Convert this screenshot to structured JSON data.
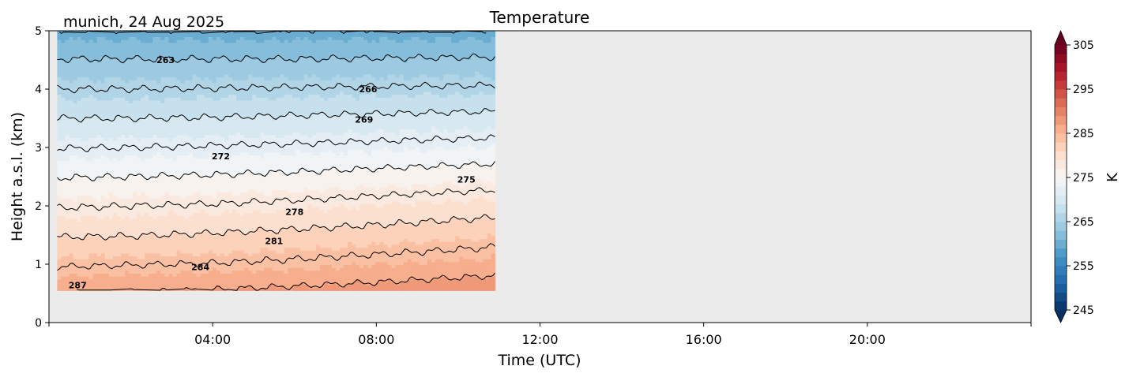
{
  "chart_data": {
    "type": "heatmap",
    "title": "Temperature",
    "subtitle": "munich, 24 Aug 2025",
    "xlabel": "Time (UTC)",
    "ylabel": "Height a.s.l. (km)",
    "xlim_hours": [
      0,
      24
    ],
    "ylim": [
      0,
      5
    ],
    "x_ticks": [
      {
        "h": 0,
        "label": ""
      },
      {
        "h": 4,
        "label": "04:00"
      },
      {
        "h": 8,
        "label": "08:00"
      },
      {
        "h": 12,
        "label": "12:00"
      },
      {
        "h": 16,
        "label": "16:00"
      },
      {
        "h": 20,
        "label": "20:00"
      },
      {
        "h": 24,
        "label": ""
      }
    ],
    "y_ticks": [
      0,
      1,
      2,
      3,
      4,
      5
    ],
    "data_time_hours": [
      0.2,
      2,
      4,
      6,
      8,
      10.9
    ],
    "data_height_km": [
      0.55,
      1.0,
      1.5,
      2.0,
      2.5,
      3.0,
      3.5,
      4.0,
      4.5,
      5.0
    ],
    "temperature_K": [
      [
        286.7,
        286.8,
        287.1,
        287.5,
        287.9,
        288.7
      ],
      [
        283.7,
        283.9,
        284.1,
        284.5,
        285.0,
        285.7
      ],
      [
        280.8,
        280.9,
        281.2,
        281.6,
        282.0,
        282.8
      ],
      [
        277.8,
        278.0,
        278.2,
        278.6,
        279.1,
        279.8
      ],
      [
        274.9,
        275.0,
        275.2,
        275.5,
        275.9,
        276.5
      ],
      [
        271.9,
        272.0,
        272.2,
        272.4,
        272.7,
        273.1
      ],
      [
        269.0,
        269.0,
        269.1,
        269.3,
        269.5,
        269.8
      ],
      [
        266.0,
        266.0,
        266.1,
        266.2,
        266.3,
        266.4
      ],
      [
        263.1,
        263.1,
        263.1,
        263.1,
        263.2,
        263.3
      ],
      [
        260.1,
        260.1,
        260.1,
        260.1,
        260.1,
        260.1
      ]
    ],
    "contour_levels": [
      260,
      263,
      266,
      269,
      272,
      275,
      278,
      281,
      284,
      287
    ],
    "contour_labels": [
      {
        "text": "263",
        "h": 2.85,
        "z": 4.5
      },
      {
        "text": "266",
        "h": 7.8,
        "z": 4.0
      },
      {
        "text": "269",
        "h": 7.7,
        "z": 3.48
      },
      {
        "text": "272",
        "h": 4.2,
        "z": 2.85
      },
      {
        "text": "275",
        "h": 10.2,
        "z": 2.45
      },
      {
        "text": "278",
        "h": 6.0,
        "z": 1.9
      },
      {
        "text": "281",
        "h": 5.5,
        "z": 1.4
      },
      {
        "text": "284",
        "h": 3.7,
        "z": 0.95
      },
      {
        "text": "287",
        "h": 0.7,
        "z": 0.64
      }
    ],
    "colorbar": {
      "label": "K",
      "min": 245,
      "max": 305,
      "step": 2,
      "ticks": [
        245,
        255,
        265,
        275,
        285,
        295,
        305
      ],
      "extend": "both",
      "colormap": "RdBu_r"
    },
    "background_color": "#ebebeb"
  }
}
